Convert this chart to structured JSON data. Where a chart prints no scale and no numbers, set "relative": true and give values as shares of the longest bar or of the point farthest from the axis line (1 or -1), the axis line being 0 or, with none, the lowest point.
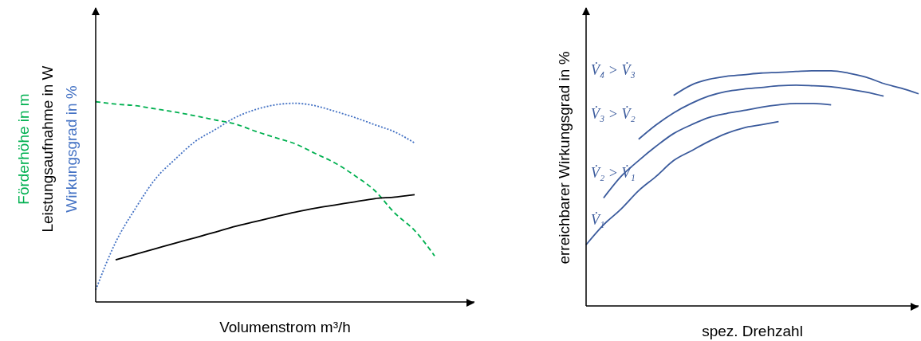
{
  "chart_data": [
    {
      "type": "line",
      "relative": true,
      "xlabel": "Volumenstrom m³/h",
      "legend": false,
      "categories": [
        null,
        null,
        null,
        null,
        null,
        null,
        null,
        null,
        null,
        null,
        null,
        null,
        null,
        null,
        null,
        null,
        null,
        null,
        null,
        null
      ],
      "series": [
        {
          "name": "Förderhöhe in m",
          "color": "#00b050",
          "line_style": "dashed",
          "values": [
            1,
            0.988,
            0.98,
            0.964,
            0.948,
            0.929,
            0.909,
            0.889,
            0.853,
            0.821,
            0.79,
            0.742,
            0.694,
            0.631,
            0.556,
            0.444,
            0.357,
            0.23,
            null,
            null
          ]
        },
        {
          "name": "Leistungsaufnahme in W",
          "color": "#000000",
          "line_style": "solid",
          "values": [
            null,
            0.21,
            0.238,
            0.266,
            0.294,
            0.321,
            0.349,
            0.377,
            0.401,
            0.425,
            0.448,
            0.468,
            0.484,
            0.5,
            0.516,
            0.524,
            0.536,
            null,
            null,
            null
          ]
        },
        {
          "name": "Wirkungsgrad in %",
          "color": "#4472c4",
          "line_style": "dotted",
          "values": [
            0.06,
            0.298,
            0.468,
            0.615,
            0.714,
            0.802,
            0.861,
            0.921,
            0.96,
            0.984,
            0.992,
            0.98,
            0.952,
            0.921,
            0.885,
            0.849,
            0.794,
            null,
            null,
            null
          ]
        }
      ]
    },
    {
      "type": "line",
      "relative": true,
      "xlabel": "spez. Drehzahl",
      "ylabel": "erreichbarer Wirkungsgrad in %",
      "legend": false,
      "categories": [
        null,
        null,
        null,
        null,
        null,
        null,
        null,
        null,
        null,
        null,
        null,
        null,
        null,
        null,
        null,
        null,
        null,
        null,
        null,
        null
      ],
      "series": [
        {
          "name": "V̇₁",
          "color": "#3a5a9c",
          "line_style": "solid",
          "values": [
            0.26,
            0.345,
            0.412,
            0.49,
            0.551,
            0.618,
            0.659,
            0.699,
            0.733,
            0.757,
            0.77,
            0.784,
            null,
            null,
            null,
            null,
            null,
            null,
            null,
            null
          ]
        },
        {
          "name": "V̇₂ > V̇₁",
          "color": "#3a5a9c",
          "line_style": "solid",
          "values": [
            null,
            0.459,
            0.551,
            0.618,
            0.679,
            0.733,
            0.77,
            0.801,
            0.818,
            0.831,
            0.845,
            0.855,
            0.861,
            0.861,
            0.855,
            null,
            null,
            null,
            null,
            null
          ]
        },
        {
          "name": "V̇₃ > V̇₂",
          "color": "#3a5a9c",
          "line_style": "solid",
          "values": [
            null,
            null,
            null,
            0.709,
            0.77,
            0.821,
            0.861,
            0.892,
            0.912,
            0.922,
            0.929,
            0.936,
            0.939,
            0.936,
            0.932,
            0.922,
            0.909,
            0.892,
            null,
            null
          ]
        },
        {
          "name": "V̇₄ > V̇₃",
          "color": "#3a5a9c",
          "line_style": "solid",
          "values": [
            null,
            null,
            null,
            null,
            null,
            0.895,
            0.939,
            0.963,
            0.976,
            0.983,
            0.99,
            0.993,
            0.997,
            1,
            1,
            0.99,
            0.973,
            0.946,
            0.926,
            0.902
          ]
        }
      ]
    }
  ]
}
